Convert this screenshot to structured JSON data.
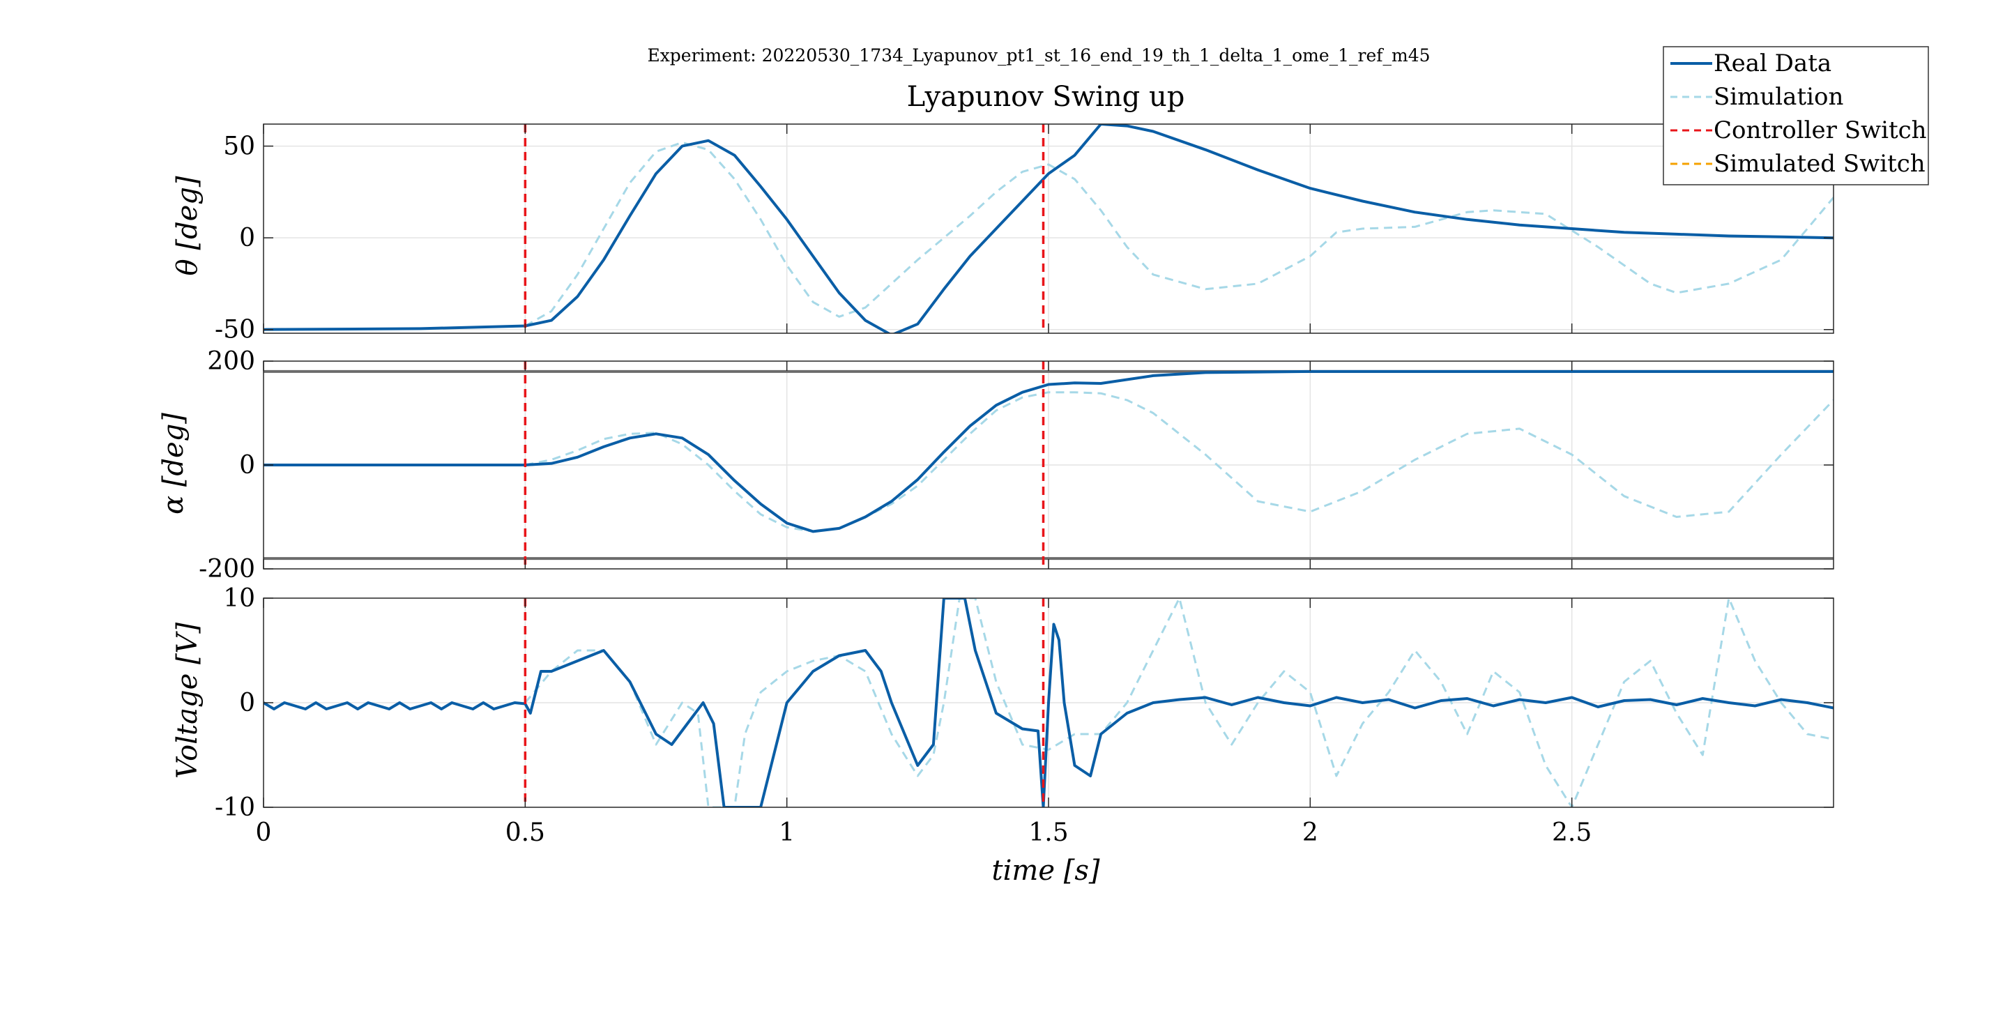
{
  "figure": {
    "suptitle": "Experiment: 20220530_1734_Lyapunov_pt1_st_16_end_19_th_1_delta_1_ome_1_ref_m45",
    "title": "Lyapunov Swing up"
  },
  "legend": [
    {
      "label": "Real Data",
      "color": "#0a5ea6",
      "style": "solid"
    },
    {
      "label": "Simulation",
      "color": "#a6d8e7",
      "style": "dashed"
    },
    {
      "label": "Controller Switch",
      "color": "#e8151a",
      "style": "dashed"
    },
    {
      "label": "Simulated Switch",
      "color": "#f5a100",
      "style": "dashed"
    }
  ],
  "chart_data": [
    {
      "type": "line",
      "panel": "theta",
      "ylabel": "θ [deg]",
      "ylim": [
        -52,
        62
      ],
      "yticks": [
        -50,
        0,
        50
      ],
      "ytick_labels": [
        "-50",
        "0",
        "50"
      ],
      "xlim": [
        0,
        3.0
      ],
      "grid": true,
      "switch_x": [
        0.5,
        1.49
      ],
      "series": [
        {
          "name": "Real Data",
          "color": "#0a5ea6",
          "x": [
            0,
            0.3,
            0.5,
            0.55,
            0.6,
            0.65,
            0.7,
            0.75,
            0.8,
            0.85,
            0.9,
            0.95,
            1.0,
            1.05,
            1.1,
            1.15,
            1.2,
            1.25,
            1.3,
            1.35,
            1.4,
            1.45,
            1.5,
            1.55,
            1.6,
            1.65,
            1.7,
            1.8,
            1.9,
            2.0,
            2.1,
            2.2,
            2.3,
            2.4,
            2.5,
            2.6,
            2.7,
            2.8,
            2.9,
            3.0
          ],
          "y": [
            -50,
            -49.5,
            -48,
            -45,
            -32,
            -12,
            12,
            35,
            50,
            53,
            45,
            28,
            10,
            -10,
            -30,
            -45,
            -53,
            -47,
            -28,
            -10,
            5,
            20,
            35,
            45,
            62,
            61,
            58,
            48,
            37,
            27,
            20,
            14,
            10,
            7,
            5,
            3,
            2,
            1,
            0.5,
            0
          ]
        },
        {
          "name": "Simulation",
          "color": "#a6d8e7",
          "x": [
            0.5,
            0.55,
            0.6,
            0.65,
            0.7,
            0.75,
            0.8,
            0.85,
            0.9,
            0.95,
            1.0,
            1.05,
            1.1,
            1.15,
            1.2,
            1.25,
            1.3,
            1.35,
            1.4,
            1.45,
            1.5,
            1.55,
            1.6,
            1.65,
            1.7,
            1.8,
            1.9,
            2.0,
            2.05,
            2.1,
            2.2,
            2.3,
            2.35,
            2.45,
            2.55,
            2.65,
            2.7,
            2.8,
            2.9,
            3.0
          ],
          "y": [
            -48,
            -40,
            -20,
            5,
            30,
            47,
            52,
            48,
            32,
            10,
            -15,
            -35,
            -43,
            -38,
            -25,
            -12,
            0,
            12,
            25,
            36,
            40,
            32,
            15,
            -5,
            -20,
            -28,
            -25,
            -10,
            3,
            5,
            6,
            14,
            15,
            13,
            -5,
            -25,
            -30,
            -25,
            -12,
            22
          ]
        }
      ]
    },
    {
      "type": "line",
      "panel": "alpha",
      "ylabel": "α [deg]",
      "ylim": [
        -200,
        200
      ],
      "yticks": [
        -200,
        0,
        200
      ],
      "ytick_labels": [
        "-200",
        "0",
        "200"
      ],
      "xlim": [
        0,
        3.0
      ],
      "grid": true,
      "switch_x": [
        0.5,
        1.49
      ],
      "reference_lines": [
        180,
        -180
      ],
      "series": [
        {
          "name": "Real Data",
          "color": "#0a5ea6",
          "x": [
            0,
            0.5,
            0.55,
            0.6,
            0.65,
            0.7,
            0.75,
            0.8,
            0.85,
            0.9,
            0.95,
            1.0,
            1.05,
            1.1,
            1.15,
            1.2,
            1.25,
            1.3,
            1.35,
            1.4,
            1.45,
            1.5,
            1.55,
            1.6,
            1.7,
            1.8,
            1.9,
            2.0,
            2.5,
            3.0
          ],
          "y": [
            0,
            0,
            3,
            15,
            35,
            52,
            60,
            52,
            20,
            -30,
            -75,
            -112,
            -128,
            -122,
            -100,
            -70,
            -28,
            25,
            75,
            115,
            140,
            155,
            158,
            157,
            172,
            178,
            179,
            180,
            180,
            180
          ]
        },
        {
          "name": "Simulation",
          "color": "#a6d8e7",
          "x": [
            0.5,
            0.55,
            0.6,
            0.65,
            0.7,
            0.75,
            0.8,
            0.85,
            0.9,
            0.95,
            1.0,
            1.05,
            1.1,
            1.15,
            1.2,
            1.25,
            1.3,
            1.35,
            1.4,
            1.45,
            1.5,
            1.55,
            1.6,
            1.65,
            1.7,
            1.8,
            1.9,
            2.0,
            2.1,
            2.2,
            2.3,
            2.4,
            2.5,
            2.6,
            2.7,
            2.8,
            2.9,
            3.0
          ],
          "y": [
            0,
            10,
            28,
            50,
            60,
            62,
            40,
            0,
            -50,
            -95,
            -120,
            -128,
            -122,
            -100,
            -75,
            -40,
            10,
            60,
            105,
            130,
            140,
            140,
            138,
            125,
            100,
            20,
            -70,
            -90,
            -50,
            10,
            60,
            70,
            20,
            -60,
            -100,
            -90,
            20,
            125
          ]
        }
      ]
    },
    {
      "type": "line",
      "panel": "voltage",
      "ylabel": "Voltage [V]",
      "xlabel": "time [s]",
      "ylim": [
        -10,
        10
      ],
      "yticks": [
        -10,
        0,
        10
      ],
      "ytick_labels": [
        "-10",
        "0",
        "10"
      ],
      "xlim": [
        0,
        3.0
      ],
      "xticks": [
        0,
        0.5,
        1,
        1.5,
        2,
        2.5
      ],
      "xtick_labels": [
        "0",
        "0.5",
        "1",
        "1.5",
        "2",
        "2.5"
      ],
      "grid": true,
      "switch_x": [
        0.5,
        1.49
      ],
      "series": [
        {
          "name": "Real Data",
          "color": "#0a5ea6",
          "x": [
            0,
            0.02,
            0.04,
            0.08,
            0.1,
            0.12,
            0.16,
            0.18,
            0.2,
            0.24,
            0.26,
            0.28,
            0.32,
            0.34,
            0.36,
            0.4,
            0.42,
            0.44,
            0.48,
            0.5,
            0.51,
            0.53,
            0.55,
            0.6,
            0.65,
            0.7,
            0.75,
            0.78,
            0.81,
            0.84,
            0.86,
            0.88,
            0.9,
            0.95,
            1.0,
            1.05,
            1.1,
            1.15,
            1.18,
            1.2,
            1.25,
            1.28,
            1.3,
            1.32,
            1.34,
            1.36,
            1.4,
            1.45,
            1.48,
            1.49,
            1.5,
            1.51,
            1.52,
            1.53,
            1.55,
            1.58,
            1.6,
            1.65,
            1.7,
            1.75,
            1.8,
            1.85,
            1.9,
            1.95,
            2.0,
            2.05,
            2.1,
            2.15,
            2.2,
            2.25,
            2.3,
            2.35,
            2.4,
            2.45,
            2.5,
            2.55,
            2.6,
            2.65,
            2.7,
            2.75,
            2.8,
            2.85,
            2.9,
            2.95,
            3.0
          ],
          "y": [
            0,
            -0.6,
            0,
            -0.6,
            0,
            -0.6,
            0,
            -0.6,
            0,
            -0.6,
            0,
            -0.6,
            0,
            -0.6,
            0,
            -0.6,
            0,
            -0.6,
            0,
            -0.1,
            -1,
            3,
            3,
            4,
            5,
            2,
            -3,
            -4,
            -2,
            0,
            -2,
            -10,
            -10,
            -10,
            0,
            3,
            4.5,
            5,
            3,
            0,
            -6,
            -4,
            10,
            10,
            10,
            5,
            -1,
            -2.5,
            -2.7,
            -10,
            0,
            7.5,
            6,
            0,
            -6,
            -7,
            -3,
            -1,
            0,
            0.3,
            0.5,
            -0.2,
            0.5,
            0,
            -0.3,
            0.5,
            0,
            0.3,
            -0.5,
            0.2,
            0.4,
            -0.3,
            0.3,
            0,
            0.5,
            -0.4,
            0.2,
            0.3,
            -0.2,
            0.4,
            0,
            -0.3,
            0.3,
            0,
            -0.5
          ]
        },
        {
          "name": "Simulation",
          "color": "#a6d8e7",
          "x": [
            0.5,
            0.55,
            0.6,
            0.65,
            0.7,
            0.75,
            0.8,
            0.83,
            0.85,
            0.88,
            0.9,
            0.92,
            0.95,
            1.0,
            1.05,
            1.1,
            1.15,
            1.2,
            1.25,
            1.28,
            1.3,
            1.33,
            1.36,
            1.4,
            1.45,
            1.5,
            1.55,
            1.6,
            1.65,
            1.7,
            1.75,
            1.8,
            1.85,
            1.9,
            1.95,
            2.0,
            2.05,
            2.1,
            2.15,
            2.2,
            2.25,
            2.3,
            2.35,
            2.4,
            2.45,
            2.5,
            2.55,
            2.6,
            2.65,
            2.7,
            2.75,
            2.8,
            2.85,
            2.9,
            2.95,
            3.0
          ],
          "y": [
            0,
            3,
            5,
            5,
            2,
            -4,
            0,
            -1,
            -10,
            -10,
            -10,
            -3,
            1,
            3,
            4,
            4.5,
            3,
            -3,
            -7,
            -5,
            0,
            10,
            10,
            2,
            -4,
            -4.5,
            -3,
            -3,
            0,
            5,
            10,
            0,
            -4,
            0,
            3,
            1,
            -7,
            -2,
            1,
            5,
            2,
            -3,
            3,
            1,
            -6,
            -10,
            -4,
            2,
            4,
            -1,
            -5,
            10,
            4,
            0,
            -3,
            -3.5
          ]
        }
      ]
    }
  ]
}
